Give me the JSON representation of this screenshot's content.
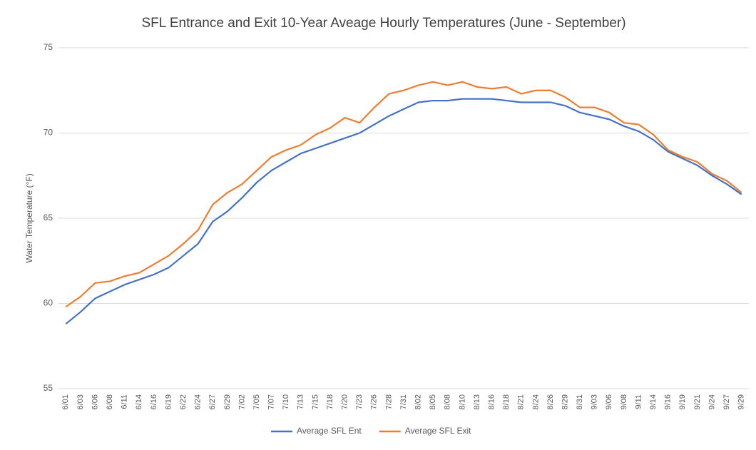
{
  "chart_data": {
    "type": "line",
    "title": "SFL Entrance and Exit 10-Year Aveage Hourly Temperatures (June - September)",
    "y_label": "Water Temperature (°F)",
    "categories": [
      "6/01",
      "6/03",
      "6/06",
      "6/08",
      "6/11",
      "6/14",
      "6/16",
      "6/19",
      "6/22",
      "6/24",
      "6/27",
      "6/29",
      "7/02",
      "7/05",
      "7/07",
      "7/10",
      "7/13",
      "7/15",
      "7/18",
      "7/20",
      "7/23",
      "7/26",
      "7/28",
      "7/31",
      "8/02",
      "8/05",
      "8/08",
      "8/10",
      "8/13",
      "8/16",
      "8/18",
      "8/21",
      "8/24",
      "8/26",
      "8/29",
      "8/31",
      "9/03",
      "9/06",
      "9/08",
      "9/11",
      "9/14",
      "9/16",
      "9/19",
      "9/21",
      "9/24",
      "9/27",
      "9/29"
    ],
    "series": [
      {
        "name": "Average SFL Ent",
        "color": "#4472c4",
        "values": [
          58.8,
          59.5,
          60.3,
          60.7,
          61.1,
          61.4,
          61.7,
          62.1,
          62.8,
          63.5,
          64.8,
          65.4,
          66.2,
          67.1,
          67.8,
          68.3,
          68.8,
          69.1,
          69.4,
          69.7,
          70.0,
          70.5,
          71.0,
          71.4,
          71.8,
          71.9,
          71.9,
          72.0,
          72.0,
          72.0,
          71.9,
          71.8,
          71.8,
          71.8,
          71.6,
          71.2,
          71.0,
          70.8,
          70.4,
          70.1,
          69.6,
          68.9,
          68.5,
          68.1,
          67.5,
          67.0,
          66.4
        ]
      },
      {
        "name": "Average SFL Exit",
        "color": "#ed7d31",
        "values": [
          59.8,
          60.4,
          61.2,
          61.3,
          61.6,
          61.8,
          62.3,
          62.8,
          63.5,
          64.3,
          65.8,
          66.5,
          67.0,
          67.8,
          68.6,
          69.0,
          69.3,
          69.9,
          70.3,
          70.9,
          70.6,
          71.5,
          72.3,
          72.5,
          72.8,
          73.0,
          72.8,
          73.0,
          72.7,
          72.6,
          72.7,
          72.3,
          72.5,
          72.5,
          72.1,
          71.5,
          71.5,
          71.2,
          70.6,
          70.5,
          69.9,
          69.0,
          68.6,
          68.3,
          67.6,
          67.2,
          66.5
        ]
      }
    ],
    "ylim": [
      55,
      75
    ],
    "yticks": [
      55,
      60,
      65,
      70,
      75
    ],
    "grid": true,
    "legend": "bottom"
  }
}
